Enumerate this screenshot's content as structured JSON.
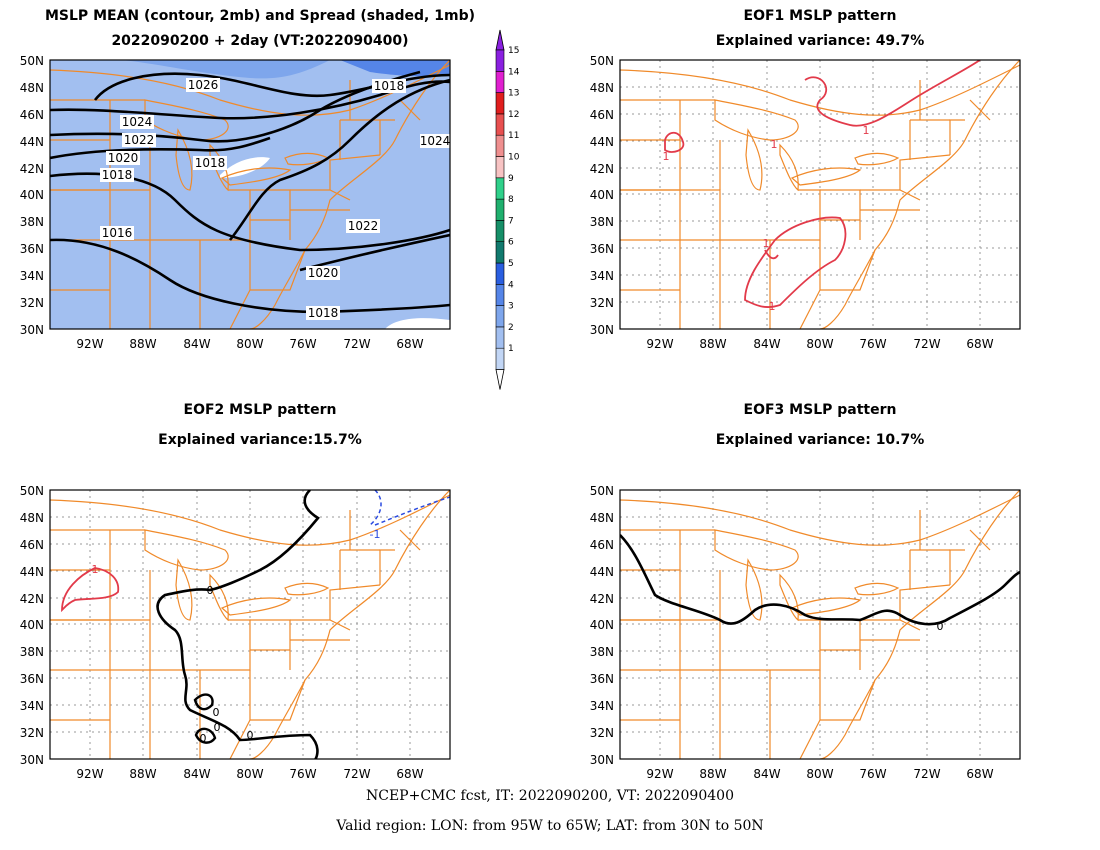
{
  "panels": [
    {
      "id": "p1",
      "title_lines": [
        "MSLP MEAN (contour, 2mb) and Spread (shaded, 1mb)",
        "2022090200 + 2day (VT:2022090400)"
      ],
      "shaded": true,
      "contours": [
        {
          "label": "1026",
          "style": "solid"
        },
        {
          "label": "1024",
          "style": "solid"
        },
        {
          "label": "1022",
          "style": "solid"
        },
        {
          "label": "1020",
          "style": "solid"
        },
        {
          "label": "1018",
          "style": "solid"
        },
        {
          "label": "1016",
          "style": "solid"
        }
      ]
    },
    {
      "id": "p2",
      "title_lines": [
        "EOF1 MSLP pattern",
        "Explained variance: 49.7%"
      ],
      "shaded": false,
      "contours": [
        {
          "label": "1",
          "style": "solid",
          "color": "#e23a4a"
        }
      ]
    },
    {
      "id": "p3",
      "title_lines": [
        "EOF2 MSLP pattern",
        "Explained variance:15.7%"
      ],
      "shaded": false,
      "contours": [
        {
          "label": "0",
          "style": "solid",
          "color": "#000000"
        },
        {
          "label": "1",
          "style": "solid",
          "color": "#e23a4a"
        },
        {
          "label": "-1",
          "style": "dashed",
          "color": "#2a4ae0"
        }
      ]
    },
    {
      "id": "p4",
      "title_lines": [
        "EOF3 MSLP pattern",
        "Explained variance: 10.7%"
      ],
      "shaded": false,
      "contours": [
        {
          "label": "0",
          "style": "solid",
          "color": "#000000"
        }
      ]
    }
  ],
  "axes": {
    "lat_labels": [
      "50N",
      "48N",
      "46N",
      "44N",
      "42N",
      "40N",
      "38N",
      "36N",
      "34N",
      "32N",
      "30N"
    ],
    "lon_labels": [
      "92W",
      "88W",
      "84W",
      "80W",
      "76W",
      "72W",
      "68W"
    ]
  },
  "colorbar": {
    "labels": [
      "1",
      "2",
      "3",
      "4",
      "5",
      "6",
      "7",
      "8",
      "9",
      "10",
      "11",
      "12",
      "13",
      "14",
      "15"
    ],
    "colors": [
      "#c2d6f5",
      "#a2bff0",
      "#7ea6ec",
      "#5585e8",
      "#2a5ee0",
      "#117a6e",
      "#168f68",
      "#1fb06e",
      "#2fd08a",
      "#f7c3c3",
      "#ef8f8f",
      "#e85050",
      "#e01e1e",
      "#e020d0",
      "#8a20e0"
    ]
  },
  "footer": {
    "line1": "NCEP+CMC fcst, IT: 2022090200, VT: 2022090400",
    "line2": "Valid region: LON: from 95W to 65W; LAT: from 30N to 50N"
  }
}
